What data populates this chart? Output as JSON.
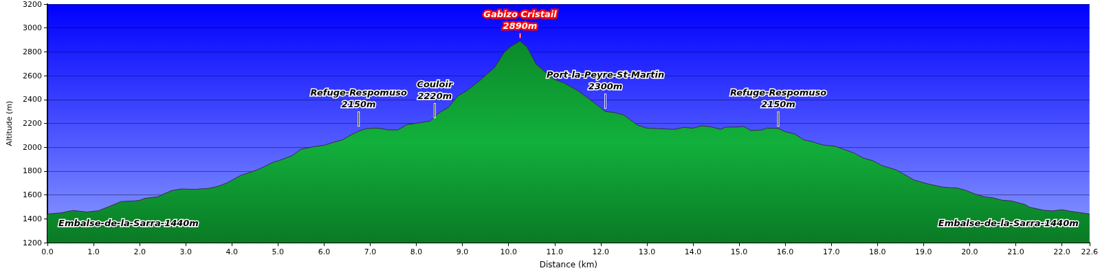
{
  "chart_data": {
    "type": "area",
    "xlabel": "Distance (km)",
    "ylabel": "Altitude (m)",
    "x": [
      0,
      0.3,
      0.55,
      0.85,
      1.1,
      1.3,
      1.6,
      1.9,
      2.0,
      2.1,
      2.4,
      2.5,
      2.7,
      2.9,
      3.2,
      3.5,
      3.7,
      3.9,
      4.2,
      4.4,
      4.6,
      4.9,
      5.0,
      5.3,
      5.5,
      5.8,
      6.0,
      6.2,
      6.4,
      6.6,
      6.75,
      6.9,
      7.1,
      7.2,
      7.4,
      7.6,
      7.8,
      8.1,
      8.3,
      8.5,
      8.7,
      8.9,
      9.1,
      9.4,
      9.7,
      9.9,
      10.05,
      10.25,
      10.4,
      10.6,
      10.8,
      11.0,
      11.2,
      11.5,
      11.8,
      12.0,
      12.1,
      12.3,
      12.5,
      12.8,
      13.0,
      13.3,
      13.6,
      13.8,
      14.0,
      14.2,
      14.4,
      14.6,
      14.7,
      15.0,
      15.1,
      15.25,
      15.5,
      15.6,
      15.85,
      16.0,
      16.2,
      16.4,
      16.6,
      16.8,
      17.1,
      17.5,
      17.7,
      17.9,
      18.1,
      18.4,
      18.5,
      18.8,
      19.1,
      19.4,
      19.6,
      19.7,
      19.9,
      20.1,
      20.3,
      20.5,
      20.7,
      20.9,
      21.2,
      21.3,
      21.6,
      21.8,
      22.0,
      22.2,
      22.6
    ],
    "series": [
      {
        "color": "#12b03c",
        "values": [
          1440,
          1450,
          1470,
          1457,
          1467,
          1497,
          1545,
          1550,
          1555,
          1570,
          1585,
          1605,
          1637,
          1650,
          1647,
          1655,
          1672,
          1702,
          1765,
          1790,
          1818,
          1875,
          1885,
          1928,
          1983,
          2006,
          2016,
          2041,
          2062,
          2107,
          2134,
          2155,
          2160,
          2158,
          2145,
          2145,
          2190,
          2206,
          2220,
          2290,
          2335,
          2430,
          2475,
          2567,
          2670,
          2793,
          2845,
          2890,
          2840,
          2695,
          2630,
          2568,
          2540,
          2475,
          2390,
          2330,
          2300,
          2290,
          2270,
          2185,
          2160,
          2155,
          2150,
          2166,
          2160,
          2180,
          2170,
          2150,
          2168,
          2170,
          2175,
          2140,
          2145,
          2160,
          2158,
          2130,
          2112,
          2062,
          2045,
          2020,
          2006,
          1950,
          1908,
          1887,
          1846,
          1811,
          1790,
          1724,
          1692,
          1667,
          1660,
          1660,
          1641,
          1610,
          1586,
          1576,
          1556,
          1550,
          1520,
          1497,
          1472,
          1466,
          1476,
          1462,
          1440
        ]
      }
    ],
    "xlim": [
      0,
      22.6
    ],
    "xticks": [
      {
        "value": 0,
        "label": "0.0"
      },
      {
        "value": 1,
        "label": "1.0"
      },
      {
        "value": 2,
        "label": "2.0"
      },
      {
        "value": 3,
        "label": "3.0"
      },
      {
        "value": 4,
        "label": "4.0"
      },
      {
        "value": 5,
        "label": "5.0"
      },
      {
        "value": 6,
        "label": "6.0"
      },
      {
        "value": 7,
        "label": "7.0"
      },
      {
        "value": 8,
        "label": "8.0"
      },
      {
        "value": 9,
        "label": "9.0"
      },
      {
        "value": 10,
        "label": "10.0"
      },
      {
        "value": 11,
        "label": "11.0"
      },
      {
        "value": 12,
        "label": "12.0"
      },
      {
        "value": 13,
        "label": "13.0"
      },
      {
        "value": 14,
        "label": "14.0"
      },
      {
        "value": 15,
        "label": "15.0"
      },
      {
        "value": 16,
        "label": "16.0"
      },
      {
        "value": 17,
        "label": "17.0"
      },
      {
        "value": 18,
        "label": "18.0"
      },
      {
        "value": 19,
        "label": "19.0"
      },
      {
        "value": 20,
        "label": "20.0"
      },
      {
        "value": 21,
        "label": "21.0"
      },
      {
        "value": 22,
        "label": "22.0"
      },
      {
        "value": 22.6,
        "label": "22.6"
      }
    ],
    "ylim": [
      1200,
      3200
    ],
    "yticks": [
      1200,
      1400,
      1600,
      1800,
      2000,
      2200,
      2400,
      2600,
      2800,
      3000,
      3200
    ],
    "grid": "y",
    "marker": "none",
    "annotations": [
      {
        "text": "Refuge-Respomuso\n2150m",
        "x": 6.75,
        "y": 2150
      },
      {
        "text": "Couloir\n2220m",
        "x": 8.4,
        "y": 2220
      },
      {
        "text": "Gabizo Cristail\n2890m",
        "x": 10.25,
        "y": 2890
      },
      {
        "text": "Port-la-Peyre-St-Martin\n2300m",
        "x": 12.1,
        "y": 2300
      },
      {
        "text": "Refuge-Respomuso\n2150m",
        "x": 15.85,
        "y": 2150
      },
      "Embalse-de-la-Sarra-1440m",
      "Embalse-de-la-Sarra-1440m"
    ]
  }
}
